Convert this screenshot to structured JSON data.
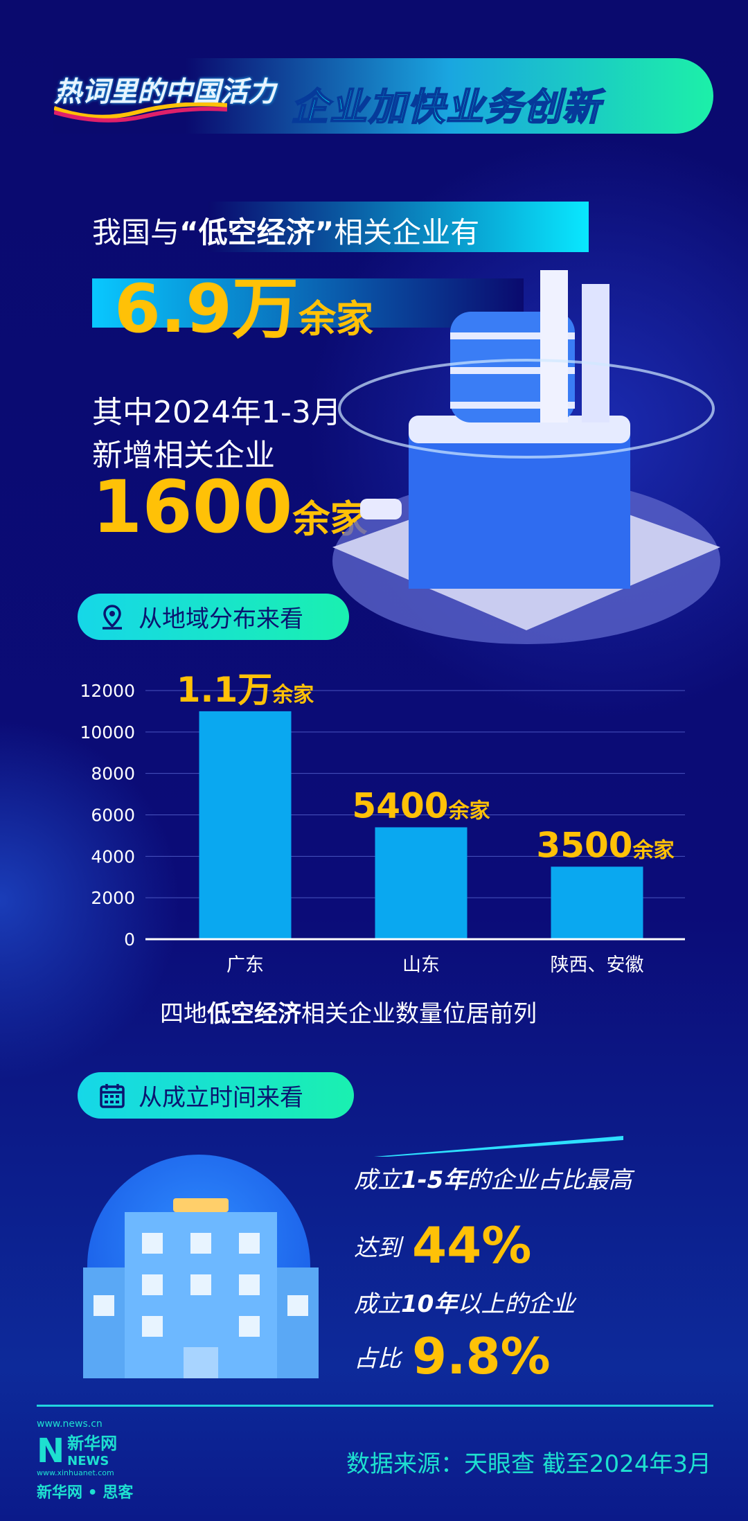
{
  "header": {
    "logo_text": "热词里的中国活力",
    "title": "企业加快业务创新"
  },
  "intro": {
    "line1_pre": "我国与",
    "line1_bold": "“低空经济”",
    "line1_post": "相关企业有",
    "total_value": "6.9万",
    "total_unit": "余家",
    "line2": "其中2024年1-3月",
    "line3": "新增相关企业",
    "new_value": "1600",
    "new_unit": "余家"
  },
  "section1": {
    "label": "从地域分布来看",
    "icon": "location-pin-icon"
  },
  "chart_data": {
    "type": "bar",
    "categories": [
      "广东",
      "山东",
      "陕西、安徽"
    ],
    "values": [
      11000,
      5400,
      3500
    ],
    "data_labels": [
      {
        "value": "1.1万",
        "unit": "余家"
      },
      {
        "value": "5400",
        "unit": "余家"
      },
      {
        "value": "3500",
        "unit": "余家"
      }
    ],
    "yticks": [
      0,
      2000,
      4000,
      6000,
      8000,
      10000,
      12000
    ],
    "ylim": [
      0,
      12000
    ],
    "grid": true,
    "bar_color": "#0aa8f0",
    "label_color": "#ffc107"
  },
  "caption": {
    "pre": "四地",
    "bold": "低空经济",
    "post": "相关企业数量位居前列"
  },
  "section2": {
    "label": "从成立时间来看",
    "icon": "calendar-icon"
  },
  "stats": {
    "s1_pre": "成立",
    "s1_bold": "1-5年",
    "s1_post": "的企业占比最高",
    "s2_pre": "达到",
    "s2_value": "44%",
    "s3_pre": "成立",
    "s3_bold": "10年",
    "s3_post": "以上的企业",
    "s4_pre": "占比",
    "s4_value": "9.8%"
  },
  "footer": {
    "logo_url_top": "www.news.cn",
    "logo_brand": "新华网",
    "logo_news": "NEWS",
    "logo_url_bottom": "www.xinhuanet.com",
    "logo_sub": "新华网 • 思客",
    "source": "数据来源：天眼查   截至2024年3月"
  },
  "colors": {
    "accent_yellow": "#ffc107",
    "cyan": "#21d4e0",
    "background": "#0a0a6e"
  }
}
